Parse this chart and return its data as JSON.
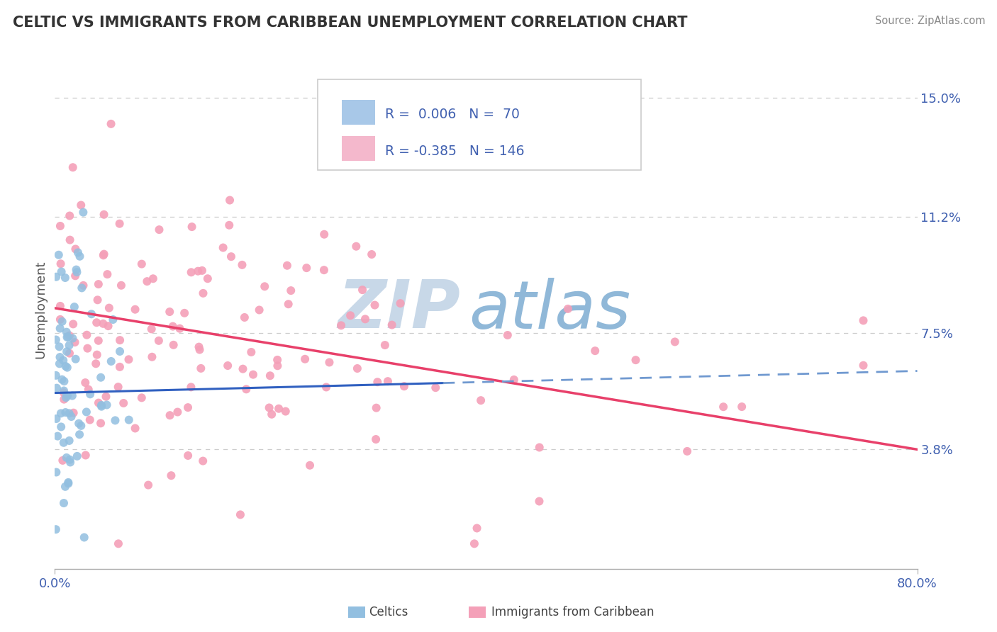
{
  "title": "CELTIC VS IMMIGRANTS FROM CARIBBEAN UNEMPLOYMENT CORRELATION CHART",
  "source_text": "Source: ZipAtlas.com",
  "ylabel": "Unemployment",
  "xlim": [
    0.0,
    0.8
  ],
  "ylim": [
    0.0,
    0.165
  ],
  "xtick_labels": [
    "0.0%",
    "80.0%"
  ],
  "xtick_positions": [
    0.0,
    0.8
  ],
  "ytick_labels": [
    "3.8%",
    "7.5%",
    "11.2%",
    "15.0%"
  ],
  "ytick_positions": [
    0.038,
    0.075,
    0.112,
    0.15
  ],
  "celtics_color": "#92bfe0",
  "caribbean_color": "#f4a0b8",
  "trendline_blue_solid_color": "#3060c0",
  "trendline_blue_dash_color": "#7099d0",
  "trendline_pink_color": "#e8406a",
  "legend_box_color": "#a8c8e8",
  "legend_box_pink_color": "#f4b8cc",
  "text_blue_color": "#4060b0",
  "watermark_zip_color": "#c8d8e8",
  "watermark_atlas_color": "#90b8d8",
  "background_color": "#ffffff",
  "grid_color": "#cccccc",
  "title_color": "#333333",
  "tick_label_color": "#4060b0",
  "source_color": "#888888",
  "ylabel_color": "#555555",
  "celtics_R": 0.006,
  "celtics_N": 70,
  "caribbean_R": -0.385,
  "caribbean_N": 146,
  "blue_trend_x0": 0.0,
  "blue_trend_x_solid_end": 0.36,
  "blue_trend_x1": 0.8,
  "blue_trend_y0": 0.056,
  "blue_trend_y1": 0.063,
  "pink_trend_x0": 0.0,
  "pink_trend_x1": 0.8,
  "pink_trend_y0": 0.083,
  "pink_trend_y1": 0.038,
  "celtics_seed": 7,
  "caribbean_seed": 99
}
